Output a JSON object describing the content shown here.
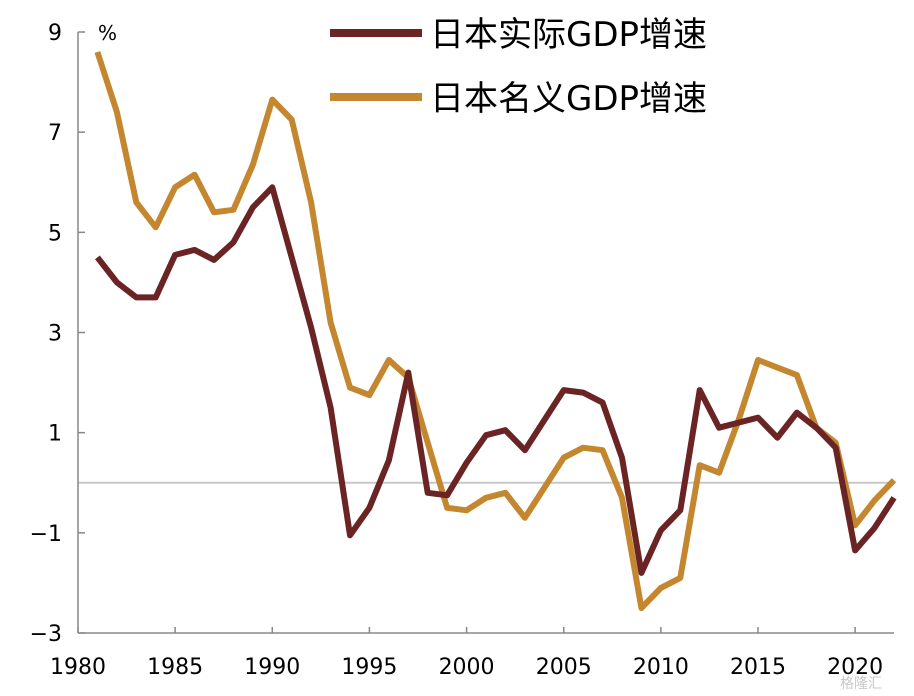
{
  "chart_data": {
    "type": "line",
    "unit": "%",
    "x": [
      1981,
      1982,
      1983,
      1984,
      1985,
      1986,
      1987,
      1988,
      1989,
      1990,
      1991,
      1992,
      1993,
      1994,
      1995,
      1996,
      1997,
      1998,
      1999,
      2000,
      2001,
      2002,
      2003,
      2004,
      2005,
      2006,
      2007,
      2008,
      2009,
      2010,
      2011,
      2012,
      2013,
      2014,
      2015,
      2016,
      2017,
      2018,
      2019,
      2020,
      2021,
      2022
    ],
    "xticks": [
      1980,
      1985,
      1990,
      1995,
      2000,
      2005,
      2010,
      2015,
      2020
    ],
    "yticks": [
      -3,
      -1,
      1,
      3,
      5,
      7,
      9
    ],
    "xlim": [
      1980,
      2022
    ],
    "ylim": [
      -3,
      9
    ],
    "legend_position": "top",
    "series": [
      {
        "name": "日本实际GDP增速",
        "color": "#6b2424",
        "values": [
          4.5,
          4.0,
          3.7,
          3.7,
          4.55,
          4.65,
          4.45,
          4.8,
          5.5,
          5.9,
          4.5,
          3.1,
          1.5,
          -1.05,
          -0.5,
          0.45,
          2.2,
          -0.2,
          -0.25,
          0.4,
          0.95,
          1.05,
          0.65,
          1.25,
          1.85,
          1.8,
          1.6,
          0.5,
          -1.8,
          -0.95,
          -0.55,
          1.85,
          1.1,
          1.2,
          1.3,
          0.9,
          1.4,
          1.1,
          0.7,
          -1.35,
          -0.9,
          -0.3
        ]
      },
      {
        "name": "日本名义GDP增速",
        "color": "#c4872f",
        "values": [
          8.6,
          7.4,
          5.6,
          5.1,
          5.9,
          6.15,
          5.4,
          5.45,
          6.35,
          7.65,
          7.25,
          5.6,
          3.2,
          1.9,
          1.75,
          2.45,
          2.1,
          0.8,
          -0.5,
          -0.55,
          -0.3,
          -0.2,
          -0.7,
          -0.1,
          0.5,
          0.7,
          0.65,
          -0.3,
          -2.5,
          -2.1,
          -1.9,
          0.35,
          0.2,
          1.25,
          2.45,
          2.3,
          2.15,
          1.1,
          0.8,
          -0.85,
          -0.35,
          0.05
        ]
      }
    ]
  },
  "watermark": "格隆汇"
}
